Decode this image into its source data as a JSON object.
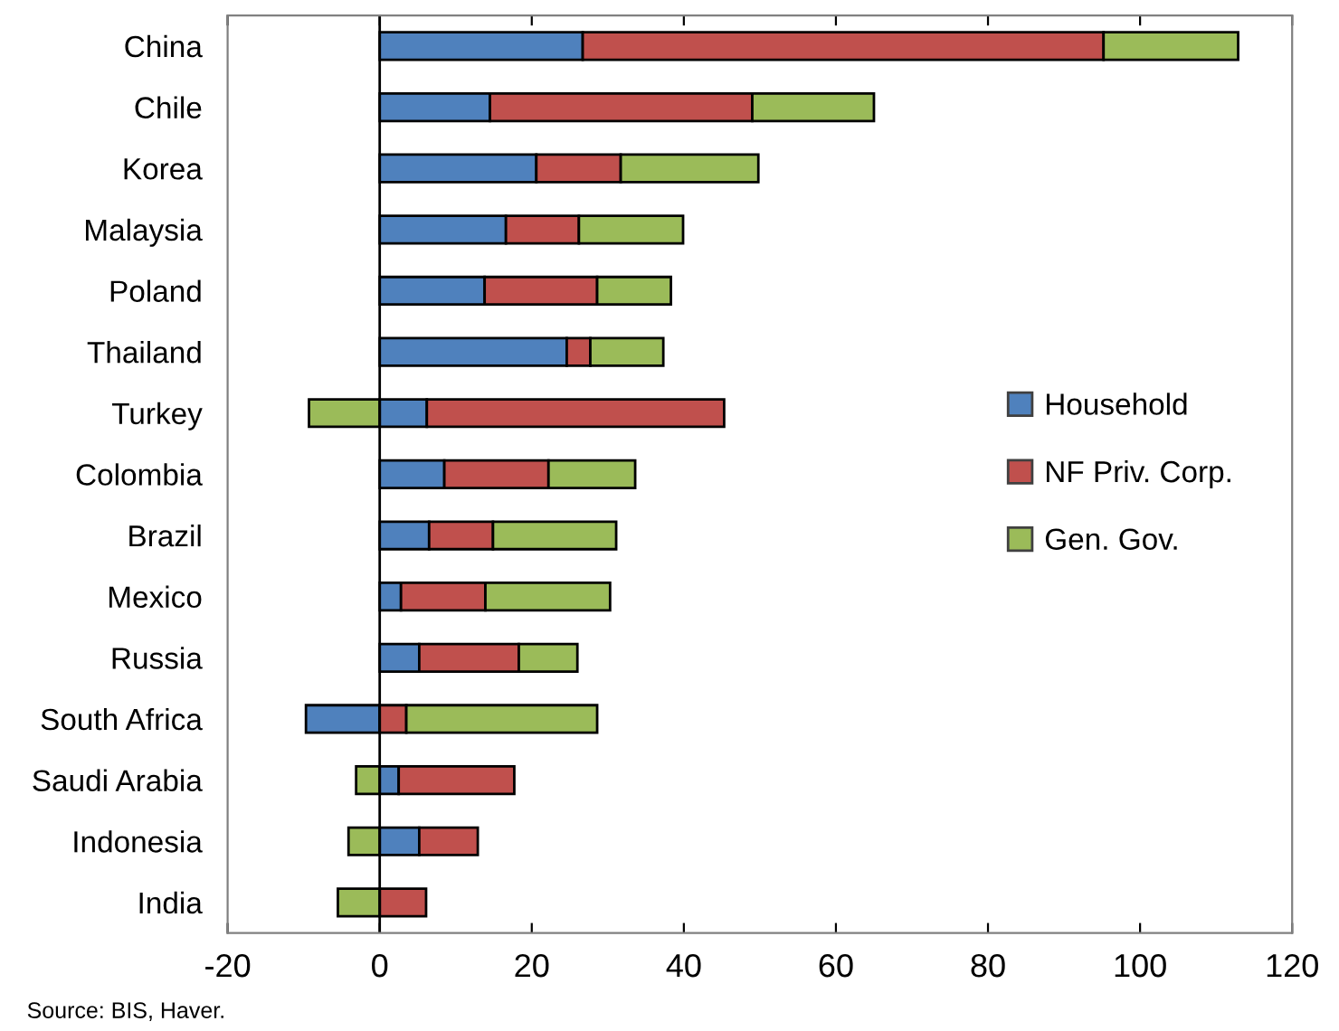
{
  "chart_data": {
    "type": "bar",
    "orientation": "horizontal",
    "stacked": true,
    "categories": [
      "China",
      "Chile",
      "Korea",
      "Malaysia",
      "Poland",
      "Thailand",
      "Turkey",
      "Colombia",
      "Brazil",
      "Mexico",
      "Russia",
      "South Africa",
      "Saudi Arabia",
      "Indonesia",
      "India"
    ],
    "series": [
      {
        "name": "Household",
        "color": "#4f81bd",
        "values": [
          26.7,
          14.5,
          20.6,
          16.6,
          13.8,
          24.6,
          6.2,
          8.5,
          6.5,
          2.8,
          5.2,
          -9.7,
          2.5,
          5.2,
          0
        ]
      },
      {
        "name": "NF Priv. Corp.",
        "color": "#c0504d",
        "values": [
          68.5,
          34.5,
          11.1,
          9.6,
          14.8,
          3.1,
          39.1,
          13.7,
          8.4,
          11.1,
          13.1,
          3.5,
          15.2,
          7.7,
          6.1
        ]
      },
      {
        "name": "Gen. Gov.",
        "color": "#9bbb59",
        "values": [
          17.7,
          16.0,
          18.1,
          13.7,
          9.7,
          9.6,
          -9.3,
          11.4,
          16.2,
          16.4,
          7.7,
          25.1,
          -3.1,
          -4.1,
          -5.5
        ]
      }
    ],
    "xlim": [
      -20,
      120
    ],
    "xticks": [
      -20,
      0,
      20,
      40,
      60,
      80,
      100,
      120
    ],
    "grid": false,
    "legend": "center right",
    "ref_lines": [
      {
        "axis": "x",
        "value": 0,
        "color": "#000000"
      }
    ],
    "annotations": [
      "Source: BIS, Haver."
    ]
  }
}
